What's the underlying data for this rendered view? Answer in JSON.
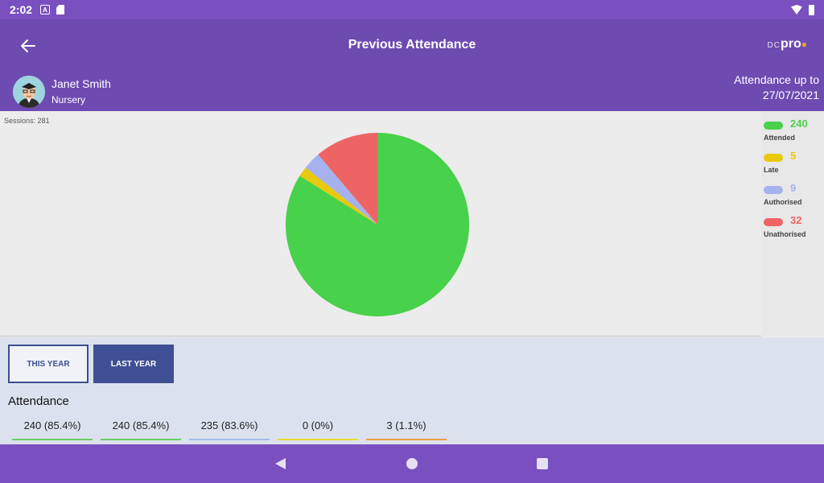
{
  "status_bar": {
    "time": "2:02",
    "notification_icon_letter": "A"
  },
  "header": {
    "title": "Previous Attendance",
    "brand": {
      "prefix": "DC",
      "name": "pro"
    }
  },
  "student": {
    "name": "Janet Smith",
    "class": "Nursery",
    "attendance_up_to_label": "Attendance up to",
    "attendance_up_to_date": "27/07/2021"
  },
  "sessions_label": "Sessions: 281",
  "colors": {
    "attended": "#48d14b",
    "late": "#e8c90c",
    "authorised": "#a6b2ee",
    "unauthorised": "#ee6464",
    "this_year_line": "#66cc66",
    "last_year_line": "#66cc66",
    "authorised_line": "#a6bce6",
    "late_line": "#e8dc2c",
    "unauth_line": "#e8a040"
  },
  "chart_data": {
    "type": "pie",
    "labels": [
      "Attended",
      "Late",
      "Authorised",
      "Unathorised"
    ],
    "values": [
      240,
      5,
      9,
      32
    ],
    "colors": [
      "#48d14b",
      "#e8c90c",
      "#a6b2ee",
      "#ee6464"
    ],
    "legend_placement": "right"
  },
  "legend": [
    {
      "value": "240",
      "label": "Attended",
      "color": "#48d14b"
    },
    {
      "value": "5",
      "label": "Late",
      "color": "#e8c90c"
    },
    {
      "value": "9",
      "label": "Authorised",
      "color": "#a6b2ee"
    },
    {
      "value": "32",
      "label": "Unathorised",
      "color": "#ee6464"
    }
  ],
  "tabs": {
    "this_year": "THIS YEAR",
    "last_year": "LAST YEAR"
  },
  "attendance": {
    "heading": "Attendance",
    "stats": [
      {
        "text": "240 (85.4%)",
        "color": "#66cc66"
      },
      {
        "text": "240 (85.4%)",
        "color": "#66cc66"
      },
      {
        "text": "235 (83.6%)",
        "color": "#a6bce6"
      },
      {
        "text": "0 (0%)",
        "color": "#e8dc2c"
      },
      {
        "text": "3 (1.1%)",
        "color": "#e8a040"
      }
    ]
  }
}
